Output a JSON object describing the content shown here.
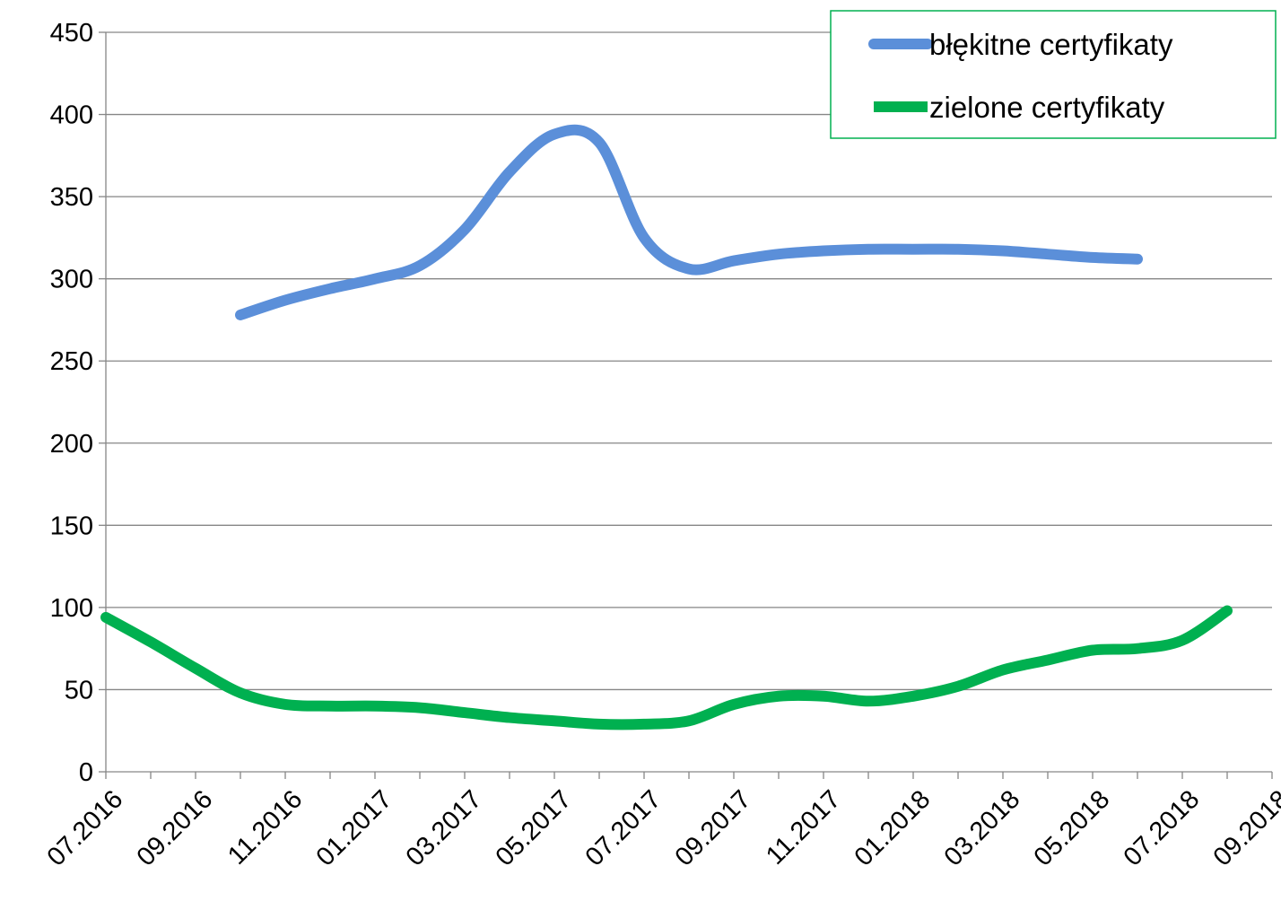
{
  "chart_data": {
    "type": "line",
    "x": [
      "07.2016",
      "08.2016",
      "09.2016",
      "10.2016",
      "11.2016",
      "12.2016",
      "01.2017",
      "02.2017",
      "03.2017",
      "04.2017",
      "05.2017",
      "06.2017",
      "07.2017",
      "08.2017",
      "09.2017",
      "10.2017",
      "11.2017",
      "12.2017",
      "01.2018",
      "02.2018",
      "03.2018",
      "04.2018",
      "05.2018",
      "06.2018",
      "07.2018",
      "08.2018",
      "09.2018"
    ],
    "x_tick_labels": [
      "07.2016",
      "09.2016",
      "11.2016",
      "01.2017",
      "03.2017",
      "05.2017",
      "07.2017",
      "09.2017",
      "11.2017",
      "01.2018",
      "03.2018",
      "05.2018",
      "07.2018",
      "09.2018"
    ],
    "series": [
      {
        "name": "błękitne certyfikaty",
        "color": "#5B8FD9",
        "values": [
          null,
          null,
          null,
          278,
          287,
          294,
          300,
          308,
          330,
          365,
          388,
          383,
          325,
          306,
          311,
          315,
          317,
          318,
          318,
          318,
          317,
          315,
          313,
          312,
          null,
          null,
          null
        ]
      },
      {
        "name": "zielone certyfikaty",
        "color": "#00B050",
        "values": [
          94,
          79,
          63,
          48,
          41,
          40,
          40,
          39,
          36,
          33,
          31,
          29,
          29,
          31,
          41,
          46,
          46,
          43,
          46,
          52,
          62,
          68,
          74,
          75,
          80,
          98,
          null
        ]
      }
    ],
    "ylim": [
      0,
      450
    ],
    "yticks": [
      0,
      50,
      100,
      150,
      200,
      250,
      300,
      350,
      400,
      450
    ],
    "grid": "horizontal",
    "legend_position": "top-right",
    "legend_border_color": "#00B050"
  }
}
